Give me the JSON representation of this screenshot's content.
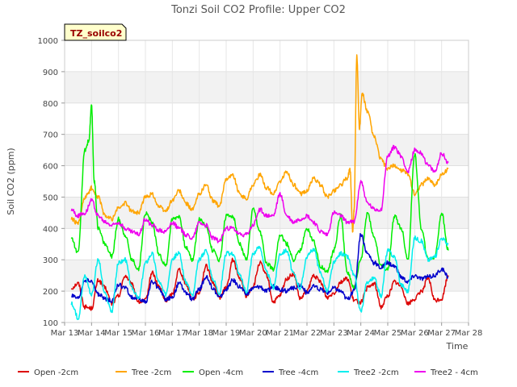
{
  "chart_data": {
    "type": "line",
    "title": "Tonzi Soil CO2 Profile: Upper CO2",
    "site_label": "TZ_soilco2",
    "xlabel": "Time",
    "ylabel": "Soil CO2 (ppm)",
    "xlim": [
      13,
      28
    ],
    "ylim": [
      100,
      1000
    ],
    "x_ticks": [
      13,
      14,
      15,
      16,
      17,
      18,
      19,
      20,
      21,
      22,
      23,
      24,
      25,
      26,
      27,
      28
    ],
    "x_tick_labels": [
      "Mar 13",
      "Mar 14",
      "Mar 15",
      "Mar 16",
      "Mar 17",
      "Mar 18",
      "Mar 19",
      "Mar 20",
      "Mar 21",
      "Mar 22",
      "Mar 23",
      "Mar 24",
      "Mar 25",
      "Mar 26",
      "Mar 27",
      "Mar 28"
    ],
    "y_ticks": [
      100,
      200,
      300,
      400,
      500,
      600,
      700,
      800,
      900,
      1000
    ],
    "y_tick_labels": [
      "100",
      "200",
      "300",
      "400",
      "500",
      "600",
      "700",
      "800",
      "900",
      "1000"
    ],
    "grid": "horizontal bands",
    "legend_position": "bottom",
    "series": [
      {
        "name": "Open -2cm",
        "color": "#dd0000",
        "x": [
          13.25,
          13.5,
          13.75,
          14.0,
          14.25,
          14.5,
          14.75,
          15.0,
          15.25,
          15.5,
          15.75,
          16.0,
          16.25,
          16.5,
          16.75,
          17.0,
          17.25,
          17.5,
          17.75,
          18.0,
          18.25,
          18.5,
          18.75,
          19.0,
          19.25,
          19.5,
          19.75,
          20.0,
          20.25,
          20.5,
          20.75,
          21.0,
          21.25,
          21.5,
          21.75,
          22.0,
          22.25,
          22.5,
          22.75,
          23.0,
          23.25,
          23.5,
          23.75,
          24.0,
          24.25,
          24.5,
          24.75,
          25.0,
          25.25,
          25.5,
          25.75,
          26.0,
          26.25,
          26.5,
          26.75,
          27.0,
          27.25
        ],
        "y": [
          210,
          225,
          150,
          145,
          235,
          210,
          160,
          185,
          250,
          220,
          165,
          170,
          260,
          215,
          170,
          190,
          270,
          225,
          175,
          195,
          280,
          230,
          180,
          210,
          300,
          240,
          185,
          215,
          290,
          250,
          165,
          185,
          240,
          255,
          175,
          200,
          250,
          230,
          180,
          195,
          230,
          240,
          170,
          165,
          210,
          225,
          150,
          185,
          230,
          215,
          160,
          175,
          200,
          240,
          170,
          175,
          250
        ]
      },
      {
        "name": "Tree -2cm",
        "color": "#ffa500",
        "x": [
          13.25,
          13.5,
          13.75,
          13.9,
          14.0,
          14.25,
          14.5,
          14.75,
          15.0,
          15.25,
          15.5,
          15.75,
          16.0,
          16.25,
          16.5,
          16.75,
          17.0,
          17.25,
          17.5,
          17.75,
          18.0,
          18.25,
          18.5,
          18.75,
          19.0,
          19.25,
          19.5,
          19.75,
          20.0,
          20.25,
          20.5,
          20.75,
          21.0,
          21.25,
          21.5,
          21.75,
          22.0,
          22.25,
          22.5,
          22.75,
          23.0,
          23.25,
          23.5,
          23.6,
          23.7,
          23.75,
          23.85,
          23.95,
          24.05,
          24.25,
          24.5,
          24.75,
          25.0,
          25.25,
          25.5,
          25.75,
          26.0,
          26.25,
          26.5,
          26.75,
          27.0,
          27.25
        ],
        "y": [
          430,
          415,
          495,
          515,
          530,
          500,
          440,
          430,
          465,
          480,
          455,
          450,
          500,
          510,
          470,
          455,
          490,
          520,
          480,
          460,
          510,
          540,
          490,
          470,
          560,
          570,
          510,
          495,
          540,
          570,
          530,
          510,
          550,
          580,
          540,
          510,
          520,
          560,
          540,
          500,
          520,
          540,
          560,
          590,
          390,
          460,
          950,
          720,
          830,
          770,
          690,
          620,
          590,
          600,
          585,
          575,
          510,
          540,
          560,
          540,
          570,
          590
        ]
      },
      {
        "name": "Open -4cm",
        "color": "#00ee00",
        "x": [
          13.25,
          13.5,
          13.75,
          13.9,
          14.0,
          14.1,
          14.25,
          14.5,
          14.75,
          15.0,
          15.25,
          15.5,
          15.75,
          16.0,
          16.25,
          16.5,
          16.75,
          17.0,
          17.25,
          17.5,
          17.75,
          18.0,
          18.25,
          18.5,
          18.75,
          19.0,
          19.25,
          19.5,
          19.75,
          20.0,
          20.25,
          20.5,
          20.75,
          21.0,
          21.25,
          21.5,
          21.75,
          22.0,
          22.25,
          22.5,
          22.75,
          23.0,
          23.25,
          23.5,
          23.75,
          24.0,
          24.25,
          24.5,
          24.75,
          25.0,
          25.25,
          25.5,
          25.75,
          26.0,
          26.25,
          26.5,
          26.75,
          27.0,
          27.25
        ],
        "y": [
          370,
          320,
          650,
          680,
          790,
          550,
          400,
          350,
          310,
          430,
          380,
          300,
          270,
          450,
          420,
          320,
          280,
          430,
          440,
          340,
          300,
          430,
          410,
          330,
          300,
          440,
          440,
          350,
          300,
          460,
          390,
          290,
          270,
          380,
          350,
          300,
          330,
          400,
          360,
          280,
          260,
          330,
          440,
          260,
          210,
          300,
          450,
          370,
          280,
          270,
          440,
          400,
          300,
          640,
          400,
          300,
          310,
          450,
          330
        ]
      },
      {
        "name": "Tree -4cm",
        "color": "#0000cc",
        "x": [
          13.25,
          13.5,
          13.75,
          14.0,
          14.25,
          14.5,
          14.75,
          15.0,
          15.25,
          15.5,
          15.75,
          16.0,
          16.25,
          16.5,
          16.75,
          17.0,
          17.25,
          17.5,
          17.75,
          18.0,
          18.25,
          18.5,
          18.75,
          19.0,
          19.25,
          19.5,
          19.75,
          20.0,
          20.25,
          20.5,
          20.75,
          21.0,
          21.25,
          21.5,
          21.75,
          22.0,
          22.25,
          22.5,
          22.75,
          23.0,
          23.25,
          23.5,
          23.75,
          24.0,
          24.25,
          24.5,
          24.75,
          25.0,
          25.25,
          25.5,
          25.75,
          26.0,
          26.25,
          26.5,
          26.75,
          27.0,
          27.25
        ],
        "y": [
          185,
          175,
          235,
          230,
          190,
          175,
          170,
          220,
          210,
          180,
          175,
          165,
          230,
          210,
          175,
          180,
          225,
          195,
          175,
          205,
          245,
          210,
          180,
          205,
          235,
          215,
          190,
          210,
          215,
          200,
          215,
          205,
          200,
          210,
          220,
          195,
          215,
          205,
          195,
          210,
          200,
          175,
          200,
          380,
          320,
          290,
          275,
          290,
          280,
          245,
          230,
          250,
          240,
          245,
          250,
          270,
          245
        ]
      },
      {
        "name": "Tree2 -2cm",
        "color": "#00eeee",
        "x": [
          13.25,
          13.5,
          13.75,
          14.0,
          14.25,
          14.5,
          14.75,
          15.0,
          15.25,
          15.5,
          15.75,
          16.0,
          16.25,
          16.5,
          16.75,
          17.0,
          17.25,
          17.5,
          17.75,
          18.0,
          18.25,
          18.5,
          18.75,
          19.0,
          19.25,
          19.5,
          19.75,
          20.0,
          20.25,
          20.5,
          20.75,
          21.0,
          21.25,
          21.5,
          21.75,
          22.0,
          22.25,
          22.5,
          22.75,
          23.0,
          23.25,
          23.5,
          23.75,
          24.0,
          24.25,
          24.5,
          24.75,
          25.0,
          25.25,
          25.5,
          25.75,
          26.0,
          26.25,
          26.5,
          26.75,
          27.0,
          27.25
        ],
        "y": [
          160,
          115,
          250,
          190,
          300,
          190,
          135,
          290,
          300,
          210,
          175,
          290,
          320,
          230,
          190,
          305,
          320,
          230,
          185,
          300,
          330,
          240,
          195,
          320,
          320,
          250,
          200,
          320,
          340,
          260,
          210,
          320,
          330,
          255,
          210,
          310,
          335,
          260,
          200,
          290,
          320,
          310,
          250,
          135,
          230,
          240,
          185,
          330,
          310,
          220,
          200,
          370,
          360,
          300,
          310,
          370,
          350
        ]
      },
      {
        "name": "Tree2 - 4cm",
        "color": "#ee00ee",
        "x": [
          13.25,
          13.5,
          13.75,
          14.0,
          14.25,
          14.5,
          14.75,
          15.0,
          15.25,
          15.5,
          15.75,
          16.0,
          16.25,
          16.5,
          16.75,
          17.0,
          17.25,
          17.5,
          17.75,
          18.0,
          18.25,
          18.5,
          18.75,
          19.0,
          19.25,
          19.5,
          19.75,
          20.0,
          20.25,
          20.5,
          20.75,
          21.0,
          21.25,
          21.5,
          21.75,
          22.0,
          22.25,
          22.5,
          22.75,
          23.0,
          23.25,
          23.5,
          23.75,
          24.0,
          24.25,
          24.5,
          24.75,
          25.0,
          25.25,
          25.5,
          25.75,
          26.0,
          26.25,
          26.5,
          26.75,
          27.0,
          27.25
        ],
        "y": [
          460,
          440,
          450,
          490,
          440,
          420,
          410,
          420,
          400,
          390,
          380,
          430,
          410,
          395,
          390,
          420,
          400,
          380,
          370,
          420,
          410,
          370,
          360,
          400,
          400,
          380,
          380,
          410,
          460,
          440,
          440,
          510,
          440,
          420,
          430,
          440,
          420,
          390,
          380,
          450,
          440,
          420,
          420,
          550,
          480,
          460,
          460,
          630,
          660,
          630,
          580,
          650,
          640,
          600,
          580,
          640,
          610
        ]
      }
    ]
  }
}
